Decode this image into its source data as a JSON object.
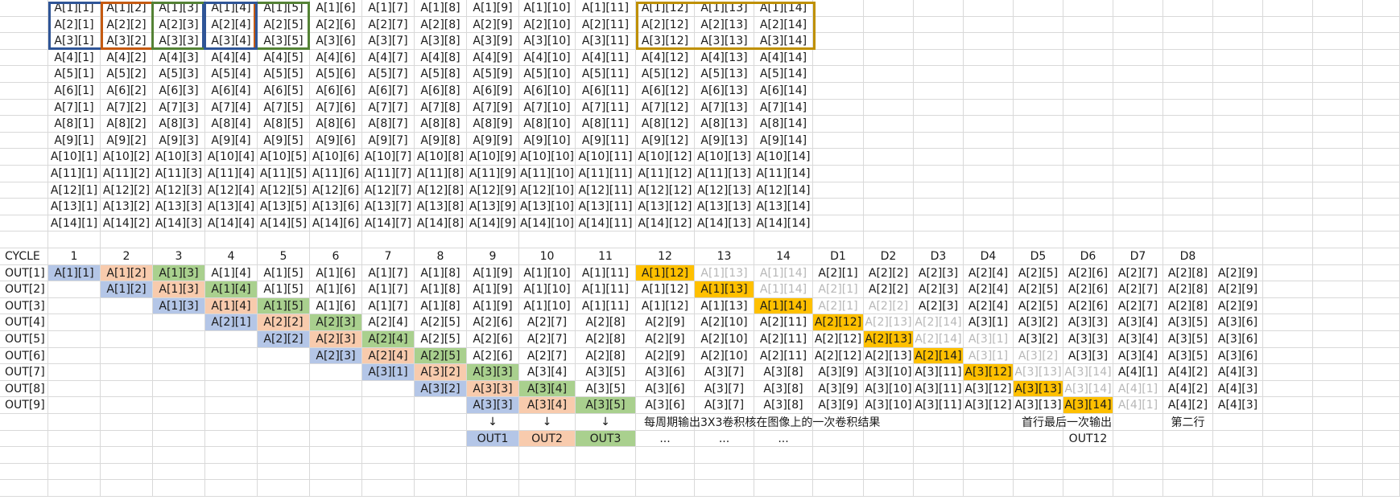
{
  "colors": {
    "blue": "#b4c6e7",
    "orange": "#f8cbad",
    "green": "#a9d08e",
    "gold": "#ffc000",
    "gray_text": "#b7b7b7",
    "box_blue": "#2f5597",
    "box_orange": "#c55a11",
    "box_green": "#548235",
    "box_gold": "#bf9000"
  },
  "input_matrix": {
    "rows": [
      [
        "A[1][1]",
        "A[1][2]",
        "A[1][3]",
        "A[1][4]",
        "A[1][5]",
        "A[1][6]",
        "A[1][7]",
        "A[1][8]",
        "A[1][9]",
        "A[1][10]",
        "A[1][11]",
        "A[1][12]",
        "A[1][13]",
        "A[1][14]"
      ],
      [
        "A[2][1]",
        "A[2][2]",
        "A[2][3]",
        "A[2][4]",
        "A[2][5]",
        "A[2][6]",
        "A[2][7]",
        "A[2][8]",
        "A[2][9]",
        "A[2][10]",
        "A[2][11]",
        "A[2][12]",
        "A[2][13]",
        "A[2][14]"
      ],
      [
        "A[3][1]",
        "A[3][2]",
        "A[3][3]",
        "A[3][4]",
        "A[3][5]",
        "A[3][6]",
        "A[3][7]",
        "A[3][8]",
        "A[3][9]",
        "A[3][10]",
        "A[3][11]",
        "A[3][12]",
        "A[3][13]",
        "A[3][14]"
      ],
      [
        "A[4][1]",
        "A[4][2]",
        "A[4][3]",
        "A[4][4]",
        "A[4][5]",
        "A[4][6]",
        "A[4][7]",
        "A[4][8]",
        "A[4][9]",
        "A[4][10]",
        "A[4][11]",
        "A[4][12]",
        "A[4][13]",
        "A[4][14]"
      ],
      [
        "A[5][1]",
        "A[5][2]",
        "A[5][3]",
        "A[5][4]",
        "A[5][5]",
        "A[5][6]",
        "A[5][7]",
        "A[5][8]",
        "A[5][9]",
        "A[5][10]",
        "A[5][11]",
        "A[5][12]",
        "A[5][13]",
        "A[5][14]"
      ],
      [
        "A[6][1]",
        "A[6][2]",
        "A[6][3]",
        "A[6][4]",
        "A[6][5]",
        "A[6][6]",
        "A[6][7]",
        "A[6][8]",
        "A[6][9]",
        "A[6][10]",
        "A[6][11]",
        "A[6][12]",
        "A[6][13]",
        "A[6][14]"
      ],
      [
        "A[7][1]",
        "A[7][2]",
        "A[7][3]",
        "A[7][4]",
        "A[7][5]",
        "A[7][6]",
        "A[7][7]",
        "A[7][8]",
        "A[7][9]",
        "A[7][10]",
        "A[7][11]",
        "A[7][12]",
        "A[7][13]",
        "A[7][14]"
      ],
      [
        "A[8][1]",
        "A[8][2]",
        "A[8][3]",
        "A[8][4]",
        "A[8][5]",
        "A[8][6]",
        "A[8][7]",
        "A[8][8]",
        "A[8][9]",
        "A[8][10]",
        "A[8][11]",
        "A[8][12]",
        "A[8][13]",
        "A[8][14]"
      ],
      [
        "A[9][1]",
        "A[9][2]",
        "A[9][3]",
        "A[9][4]",
        "A[9][5]",
        "A[9][6]",
        "A[9][7]",
        "A[9][8]",
        "A[9][9]",
        "A[9][10]",
        "A[9][11]",
        "A[9][12]",
        "A[9][13]",
        "A[9][14]"
      ],
      [
        "A[10][1]",
        "A[10][2]",
        "A[10][3]",
        "A[10][4]",
        "A[10][5]",
        "A[10][6]",
        "A[10][7]",
        "A[10][8]",
        "A[10][9]",
        "A[10][10]",
        "A[10][11]",
        "A[10][12]",
        "A[10][13]",
        "A[10][14]"
      ],
      [
        "A[11][1]",
        "A[11][2]",
        "A[11][3]",
        "A[11][4]",
        "A[11][5]",
        "A[11][6]",
        "A[11][7]",
        "A[11][8]",
        "A[11][9]",
        "A[11][10]",
        "A[11][11]",
        "A[11][12]",
        "A[11][13]",
        "A[11][14]"
      ],
      [
        "A[12][1]",
        "A[12][2]",
        "A[12][3]",
        "A[12][4]",
        "A[12][5]",
        "A[12][6]",
        "A[12][7]",
        "A[12][8]",
        "A[12][9]",
        "A[12][10]",
        "A[12][11]",
        "A[12][12]",
        "A[12][13]",
        "A[12][14]"
      ],
      [
        "A[13][1]",
        "A[13][2]",
        "A[13][3]",
        "A[13][4]",
        "A[13][5]",
        "A[13][6]",
        "A[13][7]",
        "A[13][8]",
        "A[13][9]",
        "A[13][10]",
        "A[13][11]",
        "A[13][12]",
        "A[13][13]",
        "A[13][14]"
      ],
      [
        "A[14][1]",
        "A[14][2]",
        "A[14][3]",
        "A[14][4]",
        "A[14][5]",
        "A[14][6]",
        "A[14][7]",
        "A[14][8]",
        "A[14][9]",
        "A[14][10]",
        "A[14][11]",
        "A[14][12]",
        "A[14][13]",
        "A[14][14]"
      ]
    ]
  },
  "pipeline": {
    "header": [
      "CYCLE",
      "1",
      "2",
      "3",
      "4",
      "5",
      "6",
      "7",
      "8",
      "9",
      "10",
      "11",
      "12",
      "13",
      "14",
      "D1",
      "D2",
      "D3",
      "D4",
      "D5",
      "D6",
      "D7",
      "D8",
      ""
    ],
    "rows": [
      {
        "label": "OUT[1]",
        "cells": [
          {
            "t": "A[1][1]",
            "c": "blue"
          },
          {
            "t": "A[1][2]",
            "c": "orange"
          },
          {
            "t": "A[1][3]",
            "c": "green"
          },
          {
            "t": "A[1][4]"
          },
          {
            "t": "A[1][5]"
          },
          {
            "t": "A[1][6]"
          },
          {
            "t": "A[1][7]"
          },
          {
            "t": "A[1][8]"
          },
          {
            "t": "A[1][9]"
          },
          {
            "t": "A[1][10]"
          },
          {
            "t": "A[1][11]"
          },
          {
            "t": "A[1][12]",
            "c": "gold"
          },
          {
            "t": "A[1][13]",
            "g": true
          },
          {
            "t": "A[1][14]",
            "g": true
          },
          {
            "t": "A[2][1]"
          },
          {
            "t": "A[2][2]"
          },
          {
            "t": "A[2][3]"
          },
          {
            "t": "A[2][4]"
          },
          {
            "t": "A[2][5]"
          },
          {
            "t": "A[2][6]"
          },
          {
            "t": "A[2][7]"
          },
          {
            "t": "A[2][8]"
          },
          {
            "t": "A[2][9]"
          }
        ]
      },
      {
        "label": "OUT[2]",
        "cells": [
          {
            "t": ""
          },
          {
            "t": "A[1][2]",
            "c": "blue"
          },
          {
            "t": "A[1][3]",
            "c": "orange"
          },
          {
            "t": "A[1][4]",
            "c": "green"
          },
          {
            "t": "A[1][5]"
          },
          {
            "t": "A[1][6]"
          },
          {
            "t": "A[1][7]"
          },
          {
            "t": "A[1][8]"
          },
          {
            "t": "A[1][9]"
          },
          {
            "t": "A[1][10]"
          },
          {
            "t": "A[1][11]"
          },
          {
            "t": "A[1][12]"
          },
          {
            "t": "A[1][13]",
            "c": "gold"
          },
          {
            "t": "A[1][14]",
            "g": true
          },
          {
            "t": "A[2][1]",
            "g": true
          },
          {
            "t": "A[2][2]"
          },
          {
            "t": "A[2][3]"
          },
          {
            "t": "A[2][4]"
          },
          {
            "t": "A[2][5]"
          },
          {
            "t": "A[2][6]"
          },
          {
            "t": "A[2][7]"
          },
          {
            "t": "A[2][8]"
          },
          {
            "t": "A[2][9]"
          }
        ]
      },
      {
        "label": "OUT[3]",
        "cells": [
          {
            "t": ""
          },
          {
            "t": ""
          },
          {
            "t": "A[1][3]",
            "c": "blue"
          },
          {
            "t": "A[1][4]",
            "c": "orange"
          },
          {
            "t": "A[1][5]",
            "c": "green"
          },
          {
            "t": "A[1][6]"
          },
          {
            "t": "A[1][7]"
          },
          {
            "t": "A[1][8]"
          },
          {
            "t": "A[1][9]"
          },
          {
            "t": "A[1][10]"
          },
          {
            "t": "A[1][11]"
          },
          {
            "t": "A[1][12]"
          },
          {
            "t": "A[1][13]"
          },
          {
            "t": "A[1][14]",
            "c": "gold"
          },
          {
            "t": "A[2][1]",
            "g": true
          },
          {
            "t": "A[2][2]",
            "g": true
          },
          {
            "t": "A[2][3]"
          },
          {
            "t": "A[2][4]"
          },
          {
            "t": "A[2][5]"
          },
          {
            "t": "A[2][6]"
          },
          {
            "t": "A[2][7]"
          },
          {
            "t": "A[2][8]"
          },
          {
            "t": "A[2][9]"
          }
        ]
      },
      {
        "label": "OUT[4]",
        "cells": [
          {
            "t": ""
          },
          {
            "t": ""
          },
          {
            "t": ""
          },
          {
            "t": "A[2][1]",
            "c": "blue"
          },
          {
            "t": "A[2][2]",
            "c": "orange"
          },
          {
            "t": "A[2][3]",
            "c": "green"
          },
          {
            "t": "A[2][4]"
          },
          {
            "t": "A[2][5]"
          },
          {
            "t": "A[2][6]"
          },
          {
            "t": "A[2][7]"
          },
          {
            "t": "A[2][8]"
          },
          {
            "t": "A[2][9]"
          },
          {
            "t": "A[2][10]"
          },
          {
            "t": "A[2][11]"
          },
          {
            "t": "A[2][12]",
            "c": "gold"
          },
          {
            "t": "A[2][13]",
            "g": true
          },
          {
            "t": "A[2][14]",
            "g": true
          },
          {
            "t": "A[3][1]"
          },
          {
            "t": "A[3][2]"
          },
          {
            "t": "A[3][3]"
          },
          {
            "t": "A[3][4]"
          },
          {
            "t": "A[3][5]"
          },
          {
            "t": "A[3][6]"
          }
        ]
      },
      {
        "label": "OUT[5]",
        "cells": [
          {
            "t": ""
          },
          {
            "t": ""
          },
          {
            "t": ""
          },
          {
            "t": ""
          },
          {
            "t": "A[2][2]",
            "c": "blue"
          },
          {
            "t": "A[2][3]",
            "c": "orange"
          },
          {
            "t": "A[2][4]",
            "c": "green"
          },
          {
            "t": "A[2][5]"
          },
          {
            "t": "A[2][6]"
          },
          {
            "t": "A[2][7]"
          },
          {
            "t": "A[2][8]"
          },
          {
            "t": "A[2][9]"
          },
          {
            "t": "A[2][10]"
          },
          {
            "t": "A[2][11]"
          },
          {
            "t": "A[2][12]"
          },
          {
            "t": "A[2][13]",
            "c": "gold"
          },
          {
            "t": "A[2][14]",
            "g": true
          },
          {
            "t": "A[3][1]",
            "g": true
          },
          {
            "t": "A[3][2]"
          },
          {
            "t": "A[3][3]"
          },
          {
            "t": "A[3][4]"
          },
          {
            "t": "A[3][5]"
          },
          {
            "t": "A[3][6]"
          }
        ]
      },
      {
        "label": "OUT[6]",
        "cells": [
          {
            "t": ""
          },
          {
            "t": ""
          },
          {
            "t": ""
          },
          {
            "t": ""
          },
          {
            "t": ""
          },
          {
            "t": "A[2][3]",
            "c": "blue"
          },
          {
            "t": "A[2][4]",
            "c": "orange"
          },
          {
            "t": "A[2][5]",
            "c": "green"
          },
          {
            "t": "A[2][6]"
          },
          {
            "t": "A[2][7]"
          },
          {
            "t": "A[2][8]"
          },
          {
            "t": "A[2][9]"
          },
          {
            "t": "A[2][10]"
          },
          {
            "t": "A[2][11]"
          },
          {
            "t": "A[2][12]"
          },
          {
            "t": "A[2][13]"
          },
          {
            "t": "A[2][14]",
            "c": "gold"
          },
          {
            "t": "A[3][1]",
            "g": true
          },
          {
            "t": "A[3][2]",
            "g": true
          },
          {
            "t": "A[3][3]"
          },
          {
            "t": "A[3][4]"
          },
          {
            "t": "A[3][5]"
          },
          {
            "t": "A[3][6]"
          }
        ]
      },
      {
        "label": "OUT[7]",
        "cells": [
          {
            "t": ""
          },
          {
            "t": ""
          },
          {
            "t": ""
          },
          {
            "t": ""
          },
          {
            "t": ""
          },
          {
            "t": ""
          },
          {
            "t": "A[3][1]",
            "c": "blue"
          },
          {
            "t": "A[3][2]",
            "c": "orange"
          },
          {
            "t": "A[3][3]",
            "c": "green"
          },
          {
            "t": "A[3][4]"
          },
          {
            "t": "A[3][5]"
          },
          {
            "t": "A[3][6]"
          },
          {
            "t": "A[3][7]"
          },
          {
            "t": "A[3][8]"
          },
          {
            "t": "A[3][9]"
          },
          {
            "t": "A[3][10]"
          },
          {
            "t": "A[3][11]"
          },
          {
            "t": "A[3][12]",
            "c": "gold"
          },
          {
            "t": "A[3][13]",
            "g": true
          },
          {
            "t": "A[3][14]",
            "g": true
          },
          {
            "t": "A[4][1]"
          },
          {
            "t": "A[4][2]"
          },
          {
            "t": "A[4][3]"
          }
        ]
      },
      {
        "label": "OUT[8]",
        "cells": [
          {
            "t": ""
          },
          {
            "t": ""
          },
          {
            "t": ""
          },
          {
            "t": ""
          },
          {
            "t": ""
          },
          {
            "t": ""
          },
          {
            "t": ""
          },
          {
            "t": "A[3][2]",
            "c": "blue"
          },
          {
            "t": "A[3][3]",
            "c": "orange"
          },
          {
            "t": "A[3][4]",
            "c": "green"
          },
          {
            "t": "A[3][5]"
          },
          {
            "t": "A[3][6]"
          },
          {
            "t": "A[3][7]"
          },
          {
            "t": "A[3][8]"
          },
          {
            "t": "A[3][9]"
          },
          {
            "t": "A[3][10]"
          },
          {
            "t": "A[3][11]"
          },
          {
            "t": "A[3][12]"
          },
          {
            "t": "A[3][13]",
            "c": "gold"
          },
          {
            "t": "A[3][14]",
            "g": true
          },
          {
            "t": "A[4][1]",
            "g": true
          },
          {
            "t": "A[4][2]"
          },
          {
            "t": "A[4][3]"
          }
        ]
      },
      {
        "label": "OUT[9]",
        "cells": [
          {
            "t": ""
          },
          {
            "t": ""
          },
          {
            "t": ""
          },
          {
            "t": ""
          },
          {
            "t": ""
          },
          {
            "t": ""
          },
          {
            "t": ""
          },
          {
            "t": ""
          },
          {
            "t": "A[3][3]",
            "c": "blue"
          },
          {
            "t": "A[3][4]",
            "c": "orange"
          },
          {
            "t": "A[3][5]",
            "c": "green"
          },
          {
            "t": "A[3][6]"
          },
          {
            "t": "A[3][7]"
          },
          {
            "t": "A[3][8]"
          },
          {
            "t": "A[3][9]"
          },
          {
            "t": "A[3][10]"
          },
          {
            "t": "A[3][11]"
          },
          {
            "t": "A[3][12]"
          },
          {
            "t": "A[3][13]"
          },
          {
            "t": "A[3][14]",
            "c": "gold"
          },
          {
            "t": "A[4][1]",
            "g": true
          },
          {
            "t": "A[4][2]"
          },
          {
            "t": "A[4][3]"
          }
        ]
      }
    ],
    "arrows_row": [
      "",
      "",
      "",
      "",
      "",
      "",
      "",
      "",
      "↓",
      "↓",
      "↓",
      "",
      "",
      "",
      "",
      "",
      "",
      "",
      "",
      "",
      "",
      "",
      ""
    ],
    "outputs_row": [
      {
        "t": ""
      },
      {
        "t": ""
      },
      {
        "t": ""
      },
      {
        "t": ""
      },
      {
        "t": ""
      },
      {
        "t": ""
      },
      {
        "t": ""
      },
      {
        "t": ""
      },
      {
        "t": "OUT1",
        "c": "blue"
      },
      {
        "t": "OUT2",
        "c": "orange"
      },
      {
        "t": "OUT3",
        "c": "green"
      },
      {
        "t": "..."
      },
      {
        "t": "..."
      },
      {
        "t": "..."
      },
      {
        "t": ""
      },
      {
        "t": ""
      },
      {
        "t": ""
      },
      {
        "t": ""
      },
      {
        "t": ""
      },
      {
        "t": "OUT12"
      },
      {
        "t": ""
      },
      {
        "t": ""
      },
      {
        "t": ""
      }
    ]
  },
  "notes": {
    "per_cycle": "每周期输出3X3卷积核在图像上的一次卷积结果",
    "first_row_last": "首行最后一次输出",
    "second_row": "第二行"
  }
}
